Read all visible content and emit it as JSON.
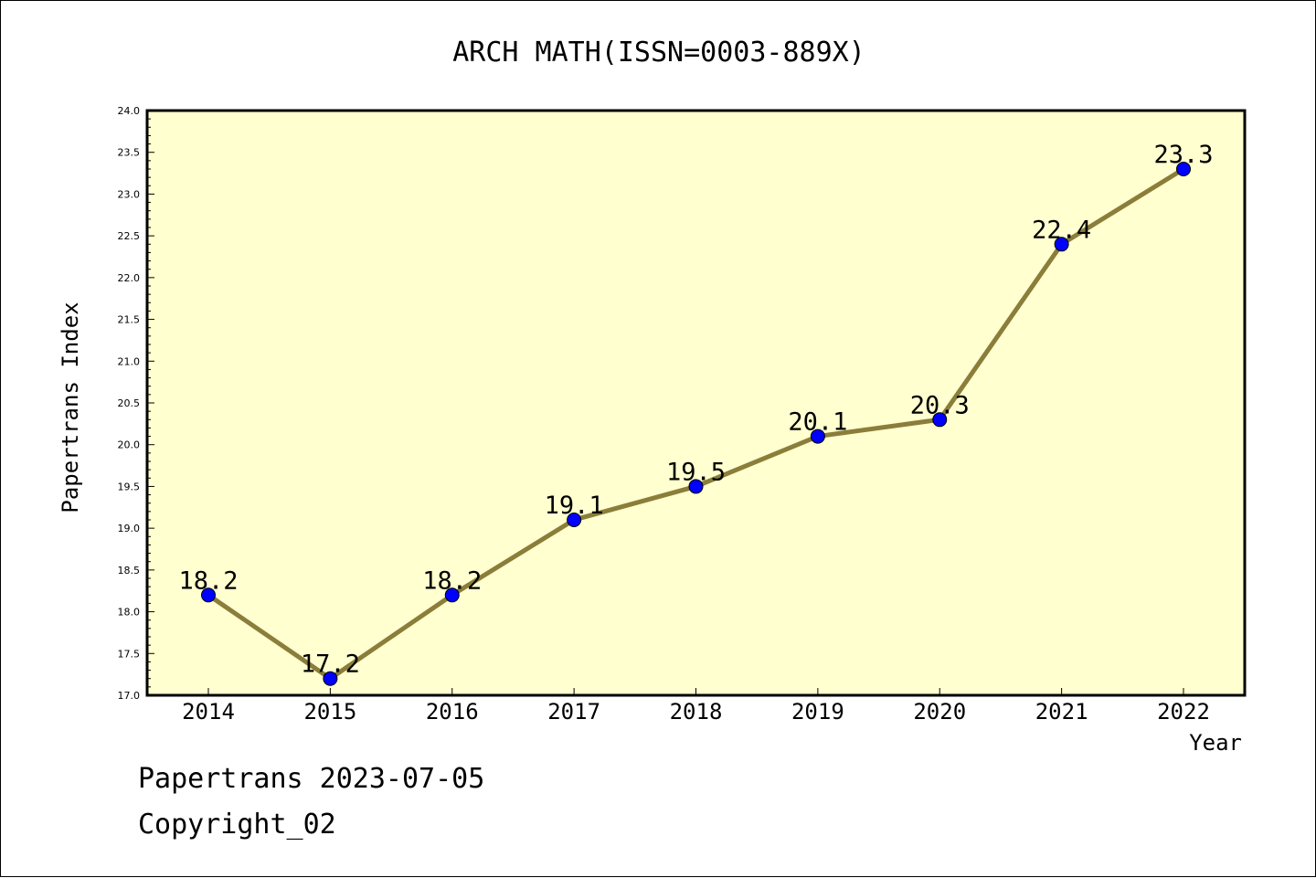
{
  "chart_data": {
    "type": "line",
    "title": "ARCH MATH(ISSN=0003-889X)",
    "xlabel": "Year",
    "ylabel": "Papertrans Index",
    "categories": [
      "2014",
      "2015",
      "2016",
      "2017",
      "2018",
      "2019",
      "2020",
      "2021",
      "2022"
    ],
    "series": [
      {
        "values": [
          18.2,
          17.2,
          18.2,
          19.1,
          19.5,
          20.1,
          20.3,
          22.4,
          23.3
        ]
      }
    ],
    "data_labels": [
      "18.2",
      "17.2",
      "18.2",
      "19.1",
      "19.5",
      "20.1",
      "20.3",
      "22.4",
      "23.3"
    ],
    "ylim": [
      17.0,
      24.0
    ],
    "yticks": [
      "17.0",
      "17.5",
      "18.0",
      "18.5",
      "19.0",
      "19.5",
      "20.0",
      "20.5",
      "21.0",
      "21.5",
      "22.0",
      "22.5",
      "23.0",
      "23.5",
      "24.0"
    ],
    "grid": false,
    "colors": {
      "plot_background": "#ffffd0",
      "line": "#8b7d3a",
      "marker": "#0000ff"
    }
  },
  "footer": {
    "line1": "Papertrans 2023-07-05",
    "line2": "Copyright_02"
  }
}
